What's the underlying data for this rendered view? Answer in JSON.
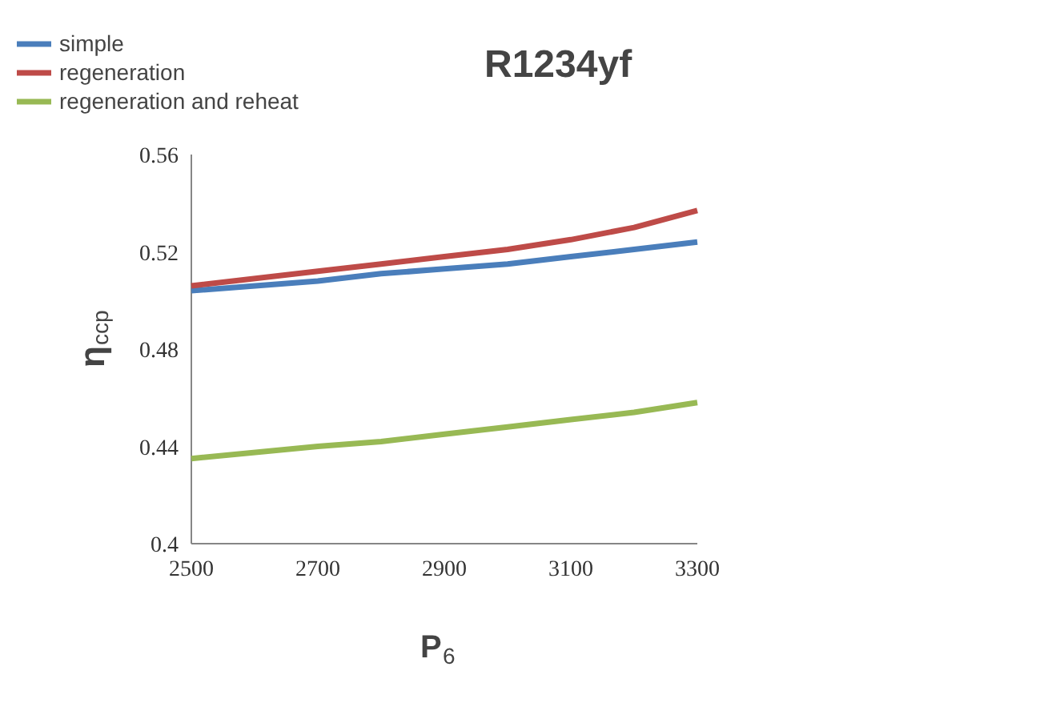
{
  "chart_data": {
    "type": "line",
    "title": "R1234yf",
    "xlabel": "P$_{6}$",
    "ylabel": "η$_{ccp}$",
    "x": [
      2500,
      2700,
      2800,
      2900,
      3000,
      3100,
      3200,
      3300
    ],
    "series": [
      {
        "name": "simple",
        "color": "#4a7ebb",
        "values": [
          0.504,
          0.508,
          0.511,
          0.513,
          0.515,
          0.518,
          0.521,
          0.524
        ]
      },
      {
        "name": "regeneration",
        "color": "#be4b48",
        "values": [
          0.506,
          0.512,
          0.515,
          0.518,
          0.521,
          0.525,
          0.53,
          0.537
        ]
      },
      {
        "name": "regeneration and reheat",
        "color": "#98b954",
        "values": [
          0.435,
          0.44,
          0.442,
          0.445,
          0.448,
          0.451,
          0.454,
          0.458
        ]
      }
    ],
    "xlim": [
      2500,
      3300
    ],
    "xticks": [
      2500,
      2700,
      2900,
      3100,
      3300
    ],
    "ylim": [
      0.4,
      0.56
    ],
    "yticks": [
      {
        "value": 0.4,
        "label": "0.4"
      },
      0.44,
      0.48,
      0.52,
      0.56
    ],
    "legend": "top left",
    "marker": "none",
    "line_style": "solid"
  }
}
